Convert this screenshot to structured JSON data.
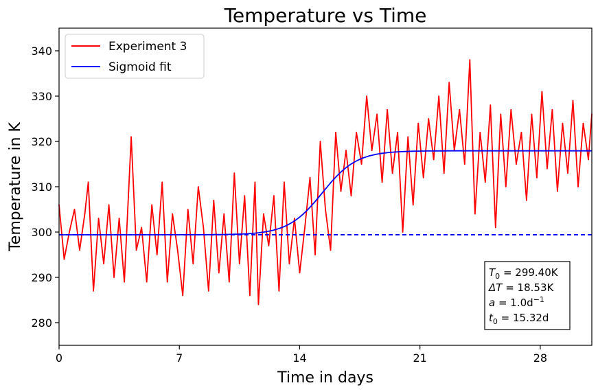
{
  "chart_data": {
    "type": "line",
    "title": "Temperature vs Time",
    "xlabel": "Time in days",
    "ylabel": "Temperature in K",
    "xlim": [
      0,
      31
    ],
    "ylim": [
      275,
      345
    ],
    "xticks": [
      0,
      7,
      14,
      21,
      28
    ],
    "xtick_labels": [
      "0",
      "7",
      "14",
      "21",
      "28"
    ],
    "yticks": [
      280,
      290,
      300,
      310,
      320,
      330,
      340
    ],
    "ytick_labels": [
      "280",
      "290",
      "300",
      "310",
      "320",
      "330",
      "340"
    ],
    "grid": false,
    "legend": {
      "placement": "top-left",
      "entries": [
        "Experiment 3",
        "Sigmoid fit"
      ]
    },
    "series": [
      {
        "name": "Experiment 3",
        "color": "#ff0000",
        "style": "solid",
        "x": [
          0,
          0.3,
          0.6,
          0.9,
          1.2,
          1.5,
          1.7,
          2.0,
          2.3,
          2.6,
          2.9,
          3.2,
          3.5,
          3.8,
          4.2,
          4.5,
          4.8,
          5.1,
          5.4,
          5.7,
          6.0,
          6.3,
          6.6,
          6.9,
          7.2,
          7.5,
          7.8,
          8.1,
          8.4,
          8.7,
          9.0,
          9.3,
          9.6,
          9.9,
          10.2,
          10.5,
          10.8,
          11.1,
          11.4,
          11.6,
          11.9,
          12.2,
          12.5,
          12.8,
          13.1,
          13.4,
          13.7,
          14.0,
          14.3,
          14.6,
          14.9,
          15.2,
          15.5,
          15.8,
          16.1,
          16.4,
          16.7,
          17.0,
          17.3,
          17.6,
          17.9,
          18.2,
          18.5,
          18.8,
          19.1,
          19.4,
          19.7,
          20.0,
          20.3,
          20.6,
          20.9,
          21.2,
          21.5,
          21.8,
          22.1,
          22.4,
          22.7,
          23.0,
          23.3,
          23.6,
          23.9,
          24.2,
          24.5,
          24.8,
          25.1,
          25.4,
          25.7,
          26.0,
          26.3,
          26.6,
          26.9,
          27.2,
          27.5,
          27.8,
          28.1,
          28.4,
          28.7,
          29.0,
          29.3,
          29.6,
          29.9,
          30.2,
          30.5,
          30.8,
          31.0
        ],
        "y": [
          306,
          294,
          300,
          305,
          296,
          304,
          311,
          287,
          303,
          293,
          306,
          290,
          303,
          289,
          321,
          296,
          301,
          289,
          306,
          295,
          311,
          289,
          304,
          296,
          286,
          305,
          293,
          310,
          301,
          287,
          307,
          291,
          304,
          289,
          313,
          293,
          308,
          286,
          311,
          284,
          304,
          297,
          308,
          287,
          311,
          293,
          303,
          291,
          301,
          312,
          295,
          320,
          305,
          296,
          322,
          309,
          318,
          308,
          322,
          315,
          330,
          318,
          326,
          311,
          327,
          313,
          322,
          300,
          321,
          306,
          324,
          312,
          325,
          316,
          330,
          313,
          333,
          318,
          327,
          315,
          338,
          304,
          322,
          311,
          328,
          301,
          326,
          310,
          327,
          315,
          322,
          307,
          326,
          312,
          331,
          314,
          327,
          309,
          324,
          313,
          329,
          310,
          324,
          316,
          326
        ]
      },
      {
        "name": "Sigmoid fit",
        "color": "#0000ff",
        "style": "solid",
        "sigmoid": {
          "T0": 299.4,
          "dT": 18.53,
          "a": 1.0,
          "t0": 15.32
        }
      }
    ],
    "reference_line": {
      "y": 299.4,
      "color": "#0000ff",
      "style": "dashed"
    },
    "annotation_box": {
      "placement": "bottom-right",
      "lines": [
        {
          "sym": "T",
          "sub": "0",
          "rest": " = 299.40K"
        },
        {
          "sym": "ΔT",
          "sub": "",
          "rest": " = 18.53K"
        },
        {
          "sym": "a",
          "sub": "",
          "rest": " = 1.0d",
          "sup": "−1"
        },
        {
          "sym": "t",
          "sub": "0",
          "rest": " = 15.32d"
        }
      ]
    }
  }
}
